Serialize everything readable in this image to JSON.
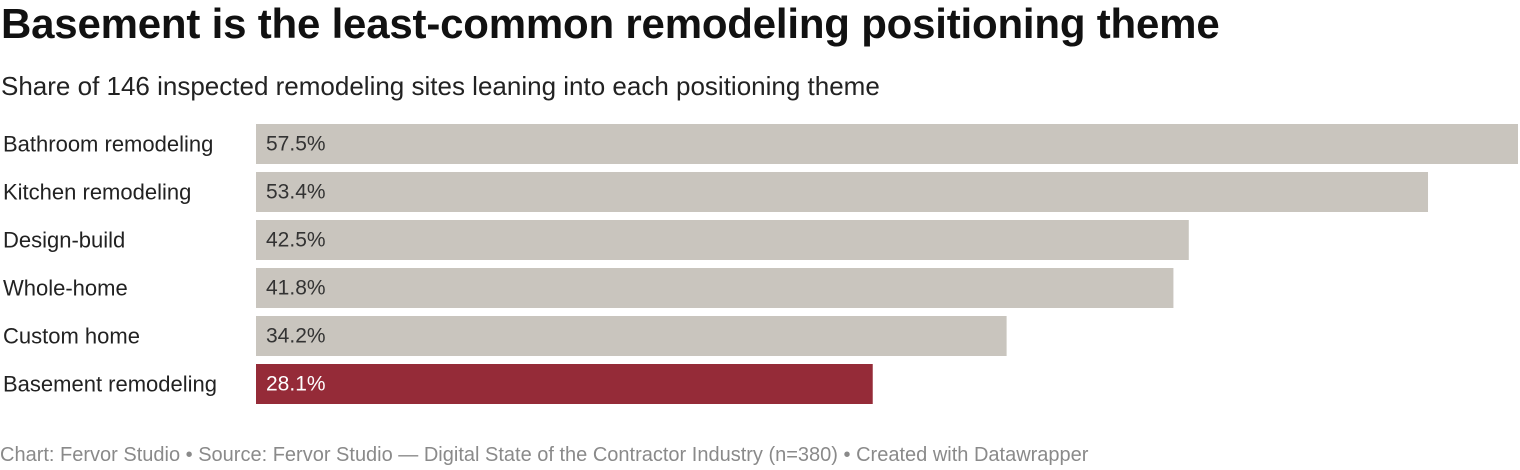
{
  "title": "Basement is the least-common remodeling positioning theme",
  "subtitle": "Share of 146 inspected remodeling sites leaning into each positioning theme",
  "footer": {
    "chart_credit": "Chart: Fervor Studio",
    "separator": "•",
    "source": "Source: Fervor Studio — Digital State of the Contractor Industry (n=380)",
    "tool": "Created with Datawrapper"
  },
  "colors": {
    "default_bar": "#c9c5be",
    "highlight_bar": "#952b38",
    "label_text": "#222222",
    "value_text_default": "#333333",
    "value_text_highlight": "#ffffff"
  },
  "chart_data": {
    "type": "bar",
    "orientation": "horizontal",
    "categories": [
      "Bathroom remodeling",
      "Kitchen remodeling",
      "Design-build",
      "Whole-home",
      "Custom home",
      "Basement remodeling"
    ],
    "values": [
      57.5,
      53.4,
      42.5,
      41.8,
      34.2,
      28.1
    ],
    "value_labels": [
      "57.5%",
      "53.4%",
      "42.5%",
      "41.8%",
      "34.2%",
      "28.1%"
    ],
    "unit": "%",
    "highlight": "Basement remodeling",
    "xlim": [
      0,
      57.5
    ],
    "grid": false,
    "legend": "none"
  }
}
